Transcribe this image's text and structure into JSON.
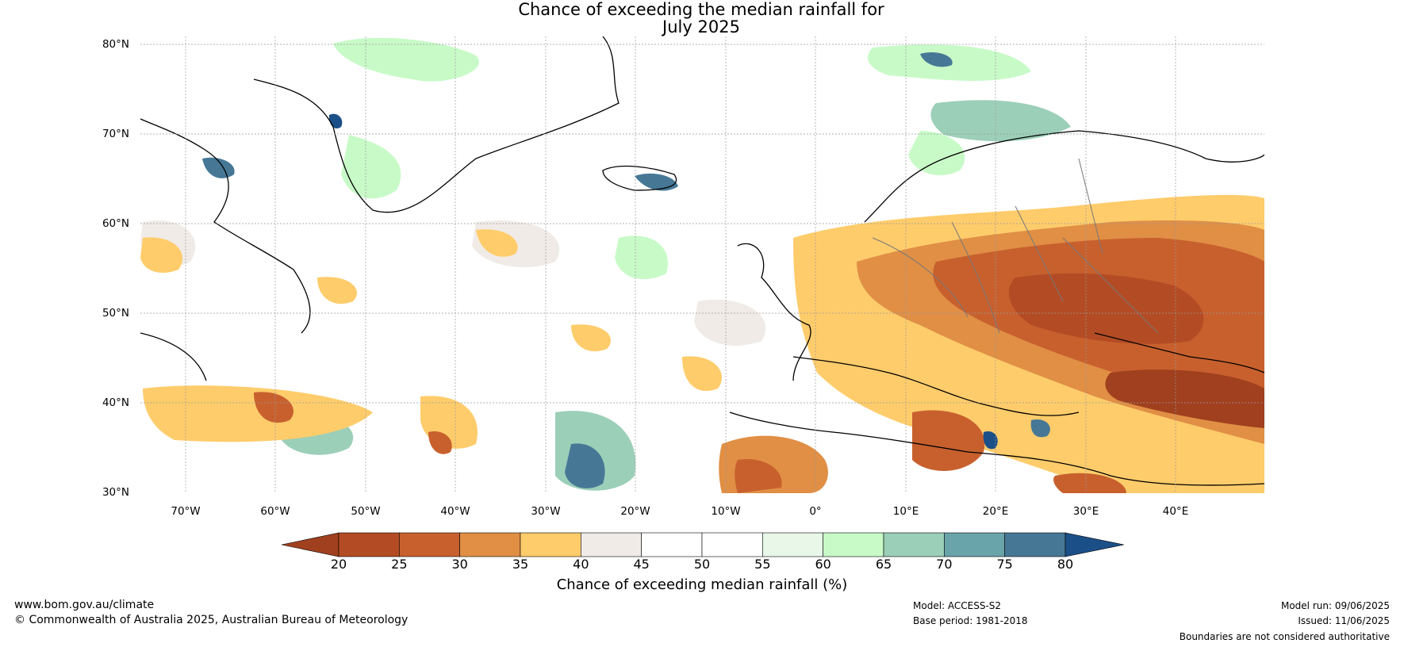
{
  "title": {
    "line1": "Chance of exceeding the median rainfall for",
    "line2": "July 2025"
  },
  "map": {
    "lat_labels": [
      "80°N",
      "70°N",
      "60°N",
      "50°N",
      "40°N",
      "30°N"
    ],
    "lon_labels": [
      "70°W",
      "60°W",
      "50°W",
      "40°W",
      "30°W",
      "20°W",
      "10°W",
      "0°",
      "10°E",
      "20°E",
      "30°E",
      "40°E"
    ],
    "lat_range": [
      30,
      81
    ],
    "lon_range": [
      -75,
      50
    ]
  },
  "colorbar": {
    "ticks": [
      "20",
      "25",
      "30",
      "35",
      "40",
      "45",
      "50",
      "55",
      "60",
      "65",
      "70",
      "75",
      "80"
    ],
    "colors": [
      "#a0401e",
      "#b34c24",
      "#c8602e",
      "#e08f45",
      "#ffcc6b",
      "#f0ebe6",
      "#ffffff",
      "#ffffff",
      "#e8f7e8",
      "#c8fac8",
      "#9ccfb8",
      "#6aa4ab",
      "#467896",
      "#1b4f88"
    ],
    "label": "Chance of exceeding median rainfall (%)"
  },
  "footer": {
    "website": "www.bom.gov.au/climate",
    "copyright": "© Commonwealth of Australia 2025, Australian Bureau of Meteorology",
    "model": "Model: ACCESS-S2",
    "base_period": "Base period: 1981-2018",
    "model_run": "Model run: 09/06/2025",
    "issued": "Issued: 11/06/2025",
    "disclaimer": "Boundaries are not considered authoritative"
  }
}
